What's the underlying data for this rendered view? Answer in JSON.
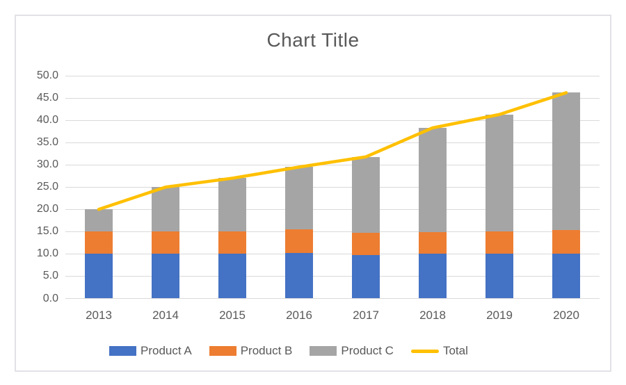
{
  "title": "Chart Title",
  "colors": {
    "product_a": "#4472C4",
    "product_b": "#ED7D31",
    "product_c": "#A5A5A5",
    "total": "#FFC000",
    "gridline": "#D9D9D9",
    "text": "#595959",
    "frame_border": "#E2E2E6"
  },
  "chart_data": {
    "type": "bar",
    "subtype": "stacked-columns-with-total-line",
    "title": "Chart Title",
    "categories": [
      "2013",
      "2014",
      "2015",
      "2016",
      "2017",
      "2018",
      "2019",
      "2020"
    ],
    "series": [
      {
        "name": "Product A",
        "render": "bar",
        "color_key": "product_a",
        "values": [
          10.0,
          10.0,
          10.0,
          10.2,
          9.8,
          10.0,
          10.0,
          10.1
        ]
      },
      {
        "name": "Product B",
        "render": "bar",
        "color_key": "product_b",
        "values": [
          5.0,
          5.0,
          5.0,
          5.3,
          5.0,
          4.9,
          5.1,
          5.3
        ]
      },
      {
        "name": "Product C",
        "render": "bar",
        "color_key": "product_c",
        "values": [
          5.0,
          10.0,
          12.0,
          14.0,
          17.0,
          23.4,
          26.2,
          30.8
        ]
      },
      {
        "name": "Total",
        "render": "line",
        "color_key": "total",
        "values": [
          20.0,
          25.0,
          27.0,
          29.5,
          31.8,
          38.3,
          41.3,
          46.2
        ]
      }
    ],
    "xlabel": "",
    "ylabel": "",
    "ylim": [
      0,
      50
    ],
    "ytick_step": 5,
    "ytick_labels": [
      "0.0",
      "5.0",
      "10.0",
      "15.0",
      "20.0",
      "25.0",
      "30.0",
      "35.0",
      "40.0",
      "45.0",
      "50.0"
    ],
    "grid": true,
    "legend_position": "bottom",
    "legend_labels": [
      "Product A",
      "Product B",
      "Product C",
      "Total"
    ]
  }
}
